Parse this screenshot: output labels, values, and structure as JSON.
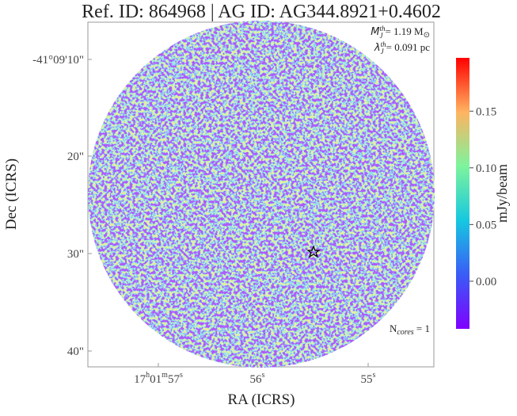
{
  "title": "Ref. ID: 864968 | AG ID: AG344.8921+0.4602",
  "annotations": {
    "mass": {
      "symbol": "M",
      "sub": "J",
      "sup": "th",
      "text": "= 1.19 M",
      "unit": "⊙"
    },
    "length": {
      "symbol": "λ",
      "sub": "J",
      "sup": "th",
      "text": "= 0.091 pc"
    },
    "cores": {
      "text": "N",
      "sub": "cores",
      "value": " = 1"
    }
  },
  "axes": {
    "x_label": "RA (ICRS)",
    "y_label": "Dec (ICRS)",
    "x_ticks": [
      {
        "parts": [
          "17",
          "h",
          "01",
          "m",
          "57",
          "s"
        ]
      },
      {
        "parts": [
          "56",
          "s"
        ]
      },
      {
        "parts": [
          "55",
          "s"
        ]
      }
    ],
    "y_ticks": [
      "-41°09'10\"",
      "20\"",
      "30\"",
      "40\""
    ]
  },
  "colorbar": {
    "label": "mJy/beam",
    "lim": [
      -0.042,
      0.197
    ],
    "ticks": [
      {
        "value": 0,
        "label": "0.00"
      },
      {
        "value": 0.05,
        "label": "0.05"
      },
      {
        "value": 0.1,
        "label": "0.10"
      },
      {
        "value": 0.15,
        "label": "0.15"
      }
    ]
  }
}
